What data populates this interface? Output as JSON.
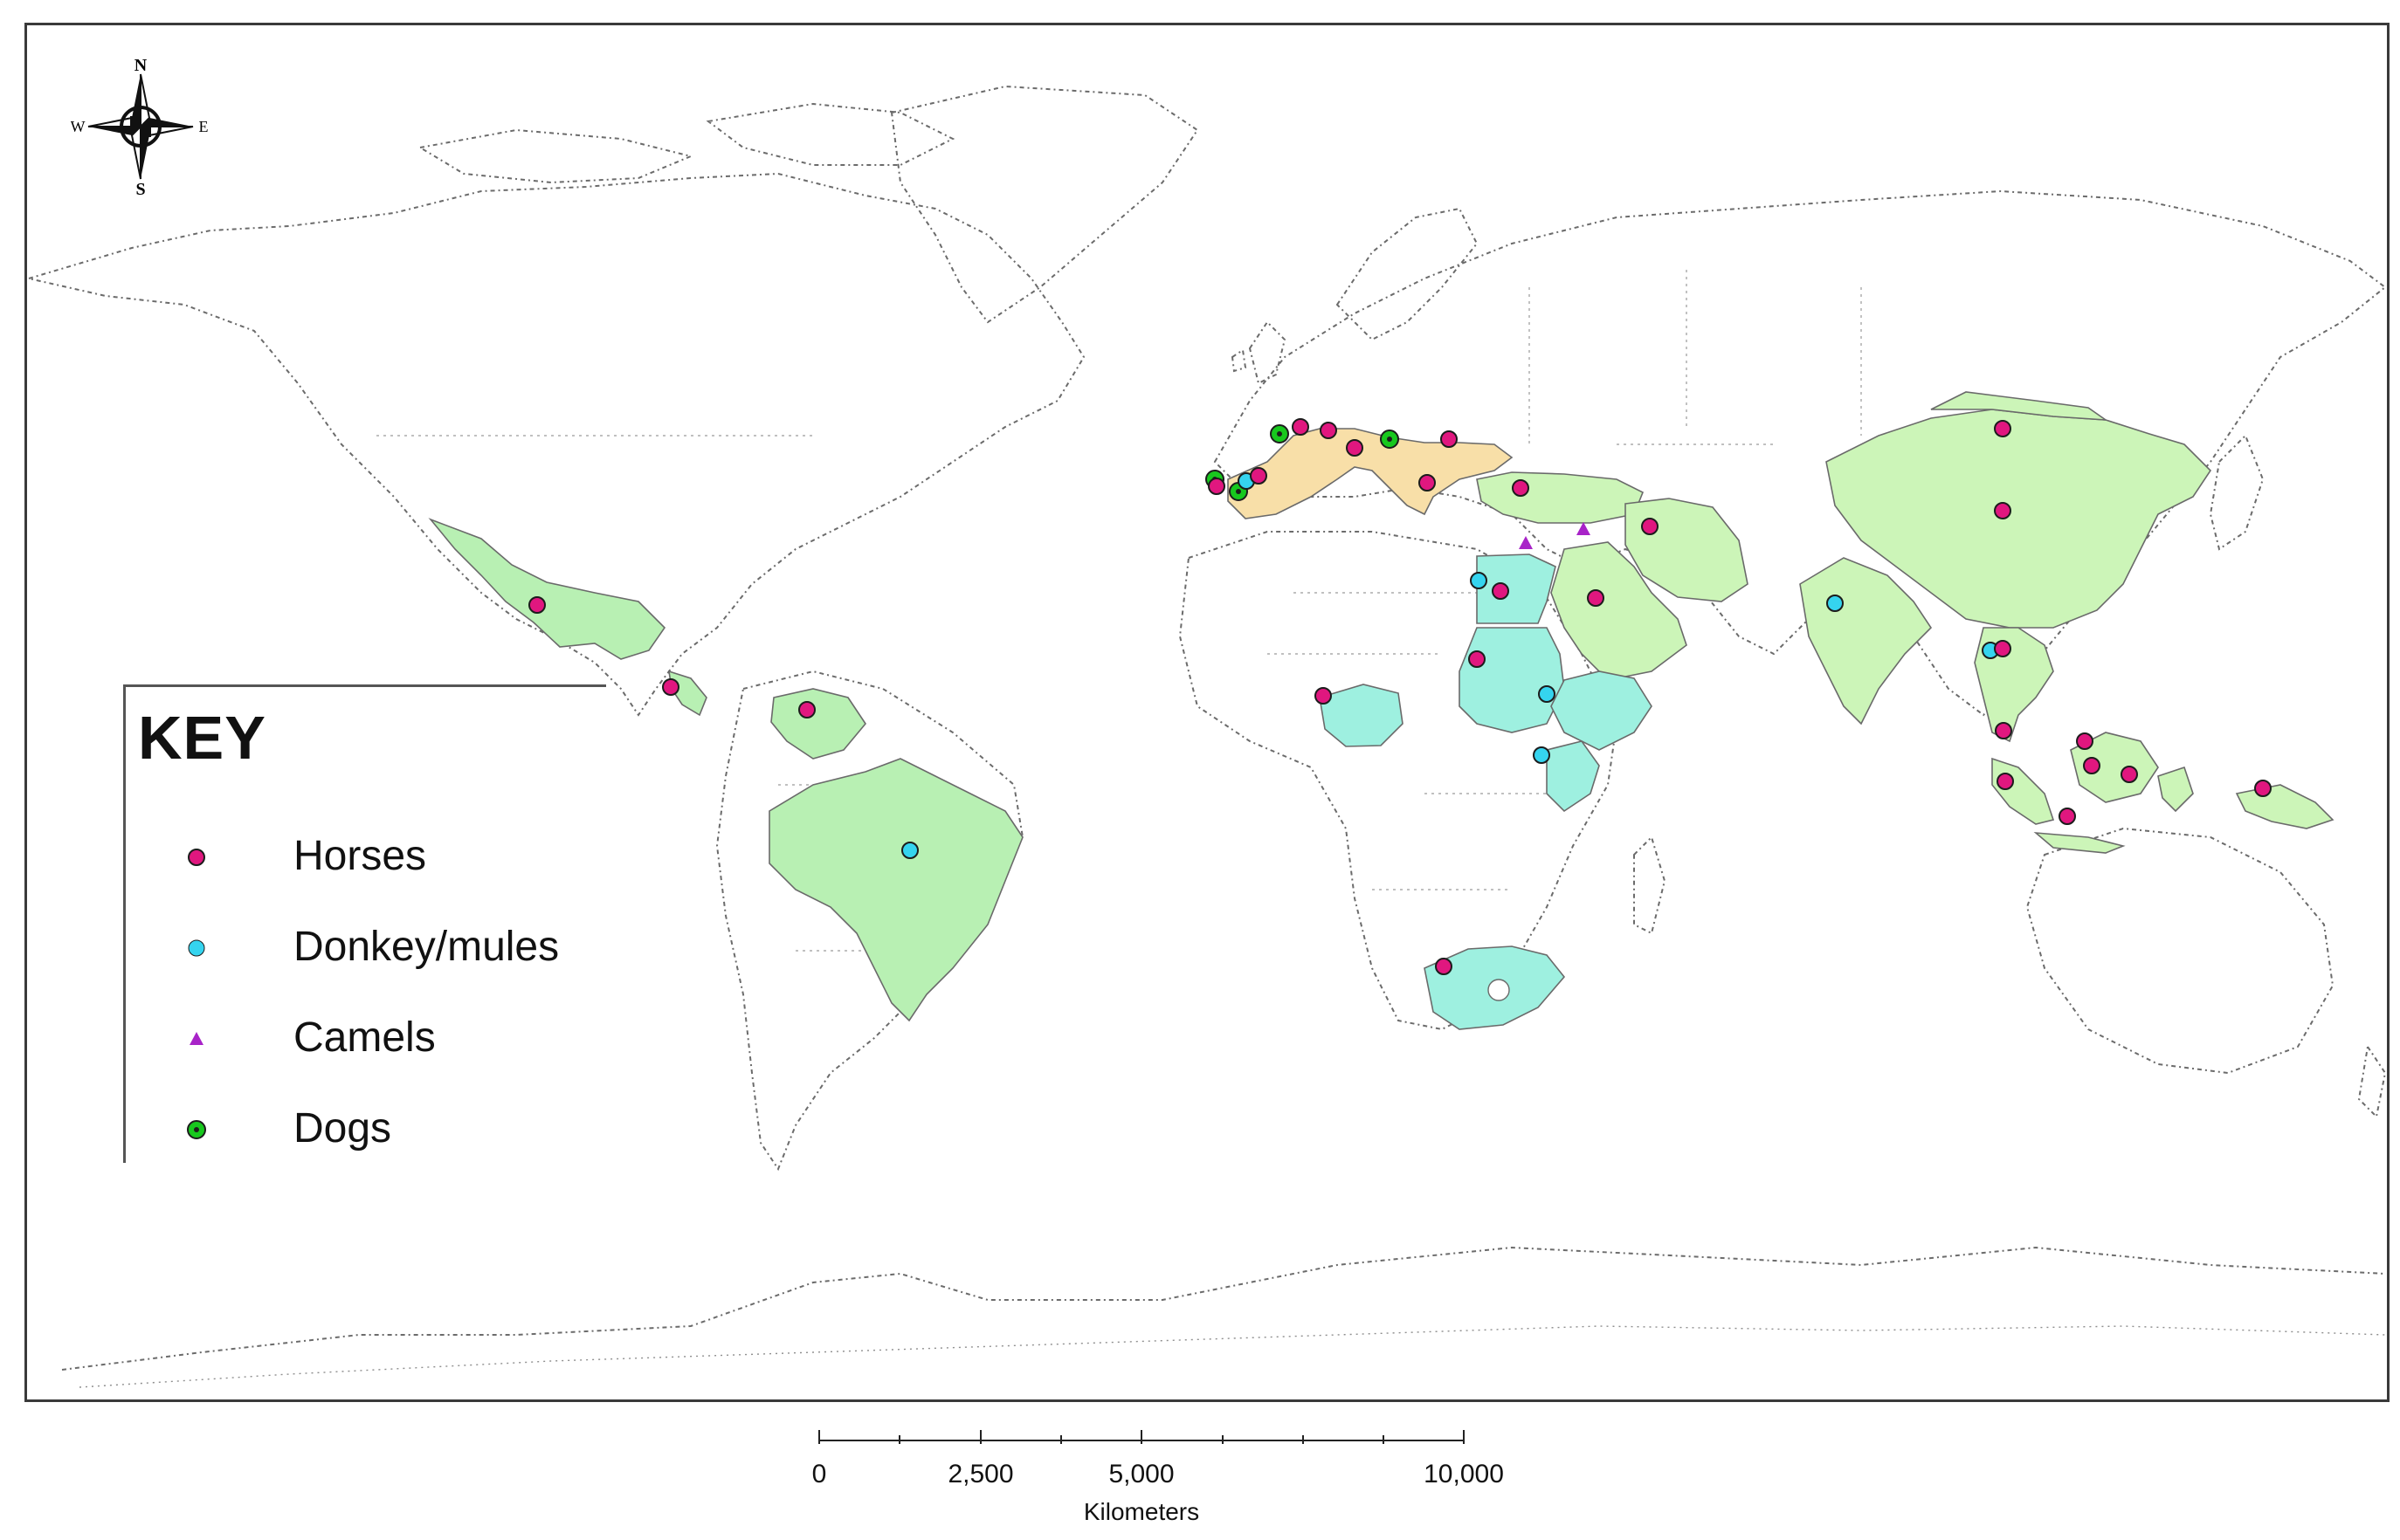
{
  "compass": {
    "n": "N",
    "s": "S",
    "e": "E",
    "w": "W"
  },
  "legend": {
    "title": "KEY",
    "items": [
      {
        "label": "Horses",
        "color": "#e0177f",
        "shape": "circle"
      },
      {
        "label": "Donkey/mules",
        "color": "#35d4ef",
        "shape": "circle"
      },
      {
        "label": "Camels",
        "color": "#a823c8",
        "shape": "triangle"
      },
      {
        "label": "Dogs",
        "color": "#18c81e",
        "shape": "circle-dot"
      }
    ]
  },
  "scale_bar": {
    "ticks": [
      "0",
      "2,500",
      "5,000",
      "10,000"
    ],
    "unit": "Kilometers"
  },
  "region_colors": {
    "light_green": "#ccf5b8",
    "mid_green": "#b8f0b3",
    "cyan": "#9ef0e0",
    "tan": "#f8dfa8"
  }
}
